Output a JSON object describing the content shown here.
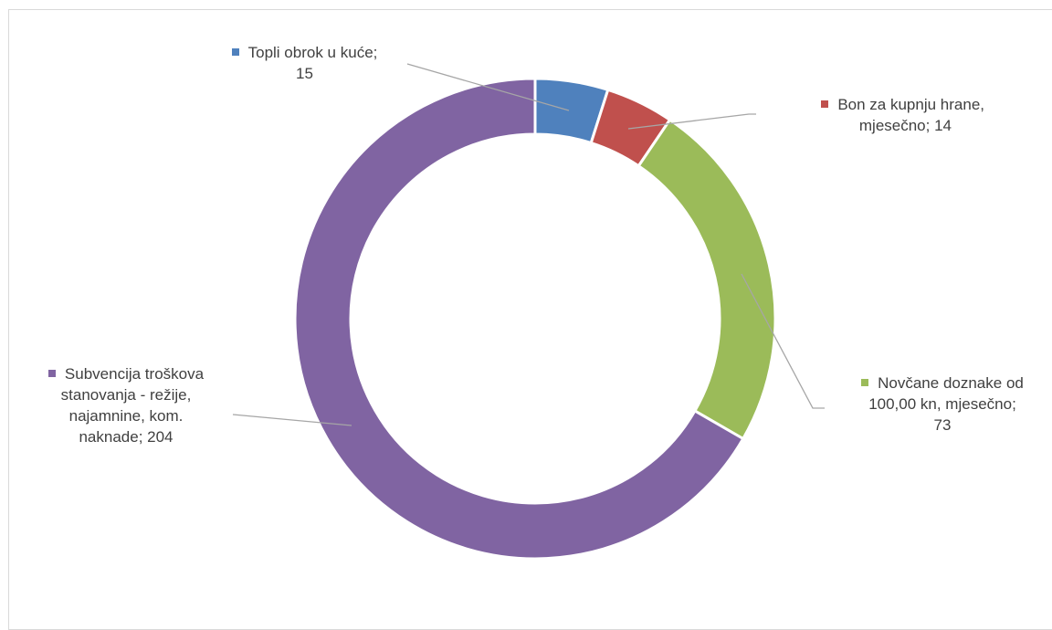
{
  "chart_data": {
    "type": "pie",
    "title": "",
    "slices": [
      {
        "label_lines": [
          "Topli obrok u kuće;",
          "15"
        ],
        "value": 15,
        "color": "#4f81bd"
      },
      {
        "label_lines": [
          "Bon za kupnju hrane,",
          "mjesečno; 14"
        ],
        "value": 14,
        "color": "#c0504d"
      },
      {
        "label_lines": [
          "Novčane doznake od",
          "100,00 kn, mjesečno;",
          "73"
        ],
        "value": 73,
        "color": "#9bbb59"
      },
      {
        "label_lines": [
          "Subvencija troškova",
          "stanovanja - režije,",
          "najamnine, kom.",
          "naknade; 204"
        ],
        "value": 204,
        "color": "#8064a2"
      }
    ]
  }
}
